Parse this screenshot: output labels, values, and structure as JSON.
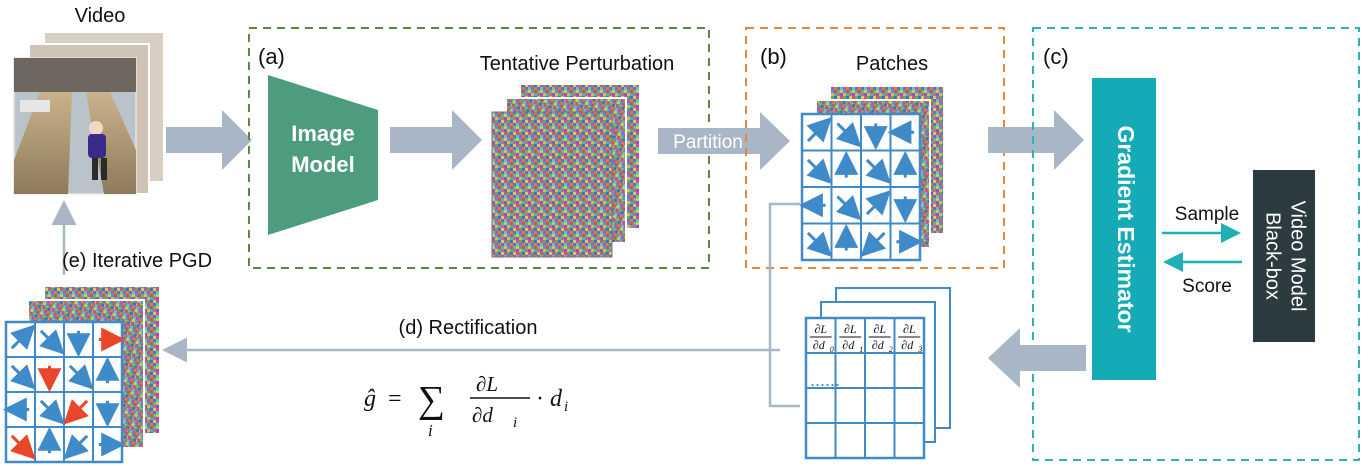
{
  "labels": {
    "video": "Video",
    "panel_a": "(a)",
    "panel_b": "(b)",
    "panel_c": "(c)",
    "image_model_line1": "Image",
    "image_model_line2": "Model",
    "tentative_perturbation": "Tentative Perturbation",
    "partition": "Partition",
    "patches": "Patches",
    "gradient_estimator": "Gradient Estimator",
    "blackbox_line1": "Black-box",
    "blackbox_line2": "Video Model",
    "sample": "Sample",
    "score": "Score",
    "rectification": "(d) Rectification",
    "iterative_pgd": "(e) Iterative PGD",
    "dots": "......"
  },
  "formula": {
    "lhs": "ĝ",
    "equals": "=",
    "sum": "∑",
    "sum_index": "i",
    "numerator": "∂L",
    "denominator": "∂d",
    "den_sub": "i",
    "dot": "·",
    "term": "d",
    "term_sub": "i"
  },
  "grad_cells": [
    {
      "num": "∂L",
      "den": "∂d",
      "sub": "0"
    },
    {
      "num": "∂L",
      "den": "∂d",
      "sub": "1"
    },
    {
      "num": "∂L",
      "den": "∂d",
      "sub": "2"
    },
    {
      "num": "∂L",
      "den": "∂d",
      "sub": "3"
    }
  ],
  "colors": {
    "dashed_a": "#5a8a3a",
    "dashed_b": "#e8843c",
    "dashed_c": "#2bb3b8",
    "image_model": "#4e9c7e",
    "gradient_estimator": "#14aab6",
    "blackbox": "#2b3b40",
    "flow_arrow": "#a9b6c6",
    "grid": "#3f8ac9",
    "red_arrow": "#e8472a",
    "teal_arrow": "#1fb0b6"
  },
  "patch_arrows_b": [
    "arrow-ne",
    "arrow-se",
    "arrow-down",
    "arrow-left",
    "arrow-se",
    "arrow-up",
    "arrow-se",
    "arrow-up",
    "arrow-left",
    "arrow-se",
    "arrow-ne",
    "arrow-down",
    "arrow-se",
    "arrow-up",
    "arrow-sw",
    "arrow-right"
  ],
  "patch_arrows_e": [
    "arrow-ne",
    "arrow-se",
    "arrow-down",
    "arrow-right-red",
    "arrow-se",
    "arrow-down-red",
    "arrow-se",
    "arrow-up",
    "arrow-left",
    "arrow-se",
    "arrow-sw-red",
    "arrow-down",
    "arrow-se-red",
    "arrow-up",
    "arrow-sw",
    "arrow-right"
  ]
}
